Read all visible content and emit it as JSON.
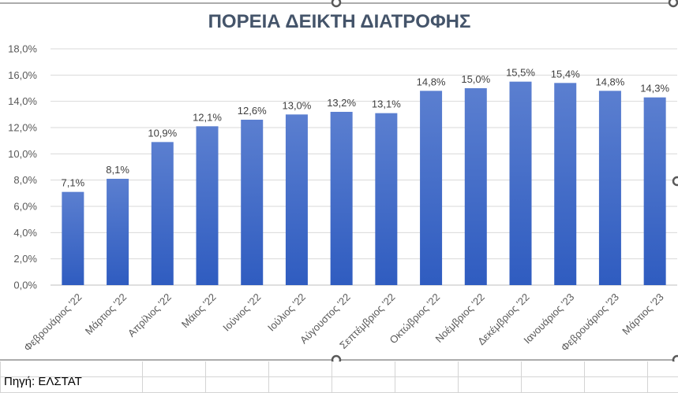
{
  "chart_data": {
    "type": "bar",
    "title": "ΠΟΡΕΙΑ ΔΕΙΚΤΗ ΔΙΑΤΡΟΦΗΣ",
    "categories": [
      "Φεβρουάριος '22",
      "Μάρτιος '22",
      "Απρίλιος '22",
      "Μάιος '22",
      "Ιούνιος '22",
      "Ιούλιος '22",
      "Αύγουστος '22",
      "Σεπτέμβριος '22",
      "Οκτώβριος '22",
      "Νοέμβριος '22",
      "Δεκέμβριος '22",
      "Ιανουάριος '23",
      "Φεβρουάριος '23",
      "Μάρτιος '23"
    ],
    "values": [
      7.1,
      8.1,
      10.9,
      12.1,
      12.6,
      13.0,
      13.2,
      13.1,
      14.8,
      15.0,
      15.5,
      15.4,
      14.8,
      14.3
    ],
    "data_labels": [
      "7,1%",
      "8,1%",
      "10,9%",
      "12,1%",
      "12,6%",
      "13,0%",
      "13,2%",
      "13,1%",
      "14,8%",
      "15,0%",
      "15,5%",
      "15,4%",
      "14,8%",
      "14,3%"
    ],
    "y_ticks": [
      "0,0%",
      "2,0%",
      "4,0%",
      "6,0%",
      "8,0%",
      "10,0%",
      "12,0%",
      "14,0%",
      "16,0%",
      "18,0%"
    ],
    "ylim": [
      0,
      18
    ],
    "grid": true,
    "legend": "none",
    "bar_color_top": "#5b7fd0",
    "bar_color_bottom": "#2f5cc0",
    "title_color": "#44546a"
  },
  "sheet": {
    "source_text": "Πηγή: ΕΛΣΤΑΤ"
  }
}
